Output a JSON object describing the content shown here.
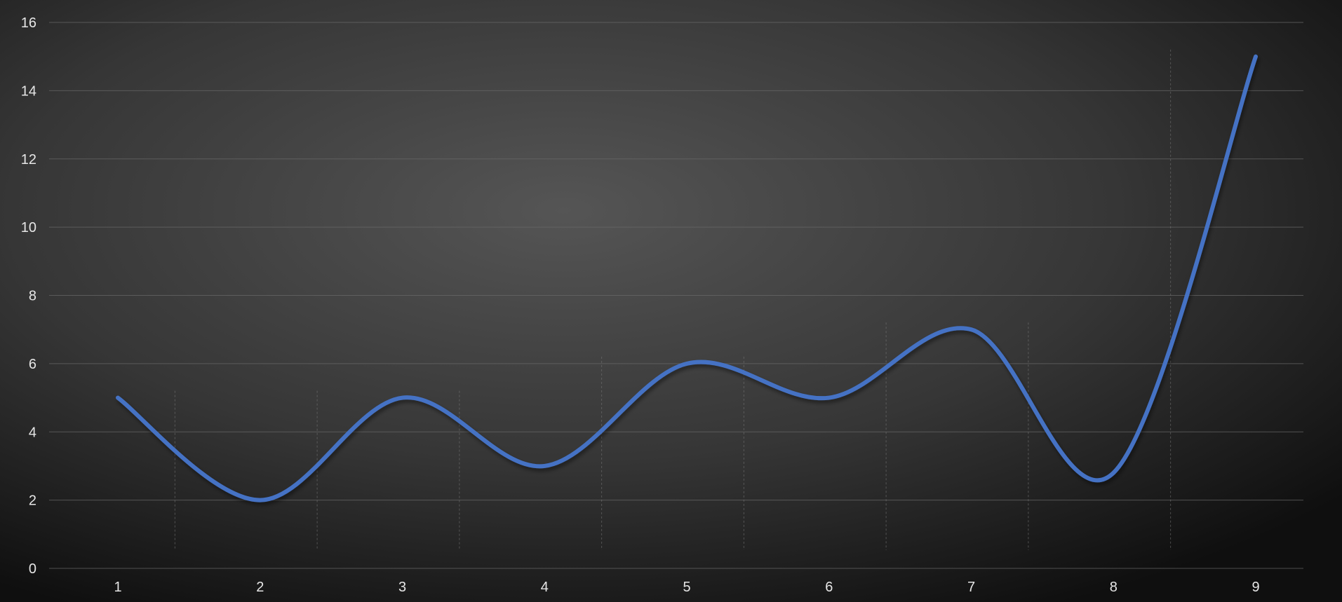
{
  "chart_data": {
    "type": "line",
    "title": "",
    "xlabel": "",
    "ylabel": "",
    "categories": [
      "1",
      "2",
      "3",
      "4",
      "5",
      "6",
      "7",
      "8",
      "9"
    ],
    "series": [
      {
        "values": [
          5,
          2,
          5,
          3,
          6,
          5,
          7,
          2.8,
          15
        ]
      }
    ],
    "ylim": [
      0,
      16
    ],
    "y_ticks": [
      "0",
      "2",
      "4",
      "6",
      "8",
      "10",
      "12",
      "14",
      "16"
    ],
    "smooth": true,
    "grid": "horizontal",
    "legend": "none"
  },
  "colors": {
    "series": "#4472c4",
    "background_center": "#555555",
    "background_edge": "#0f0f0f",
    "grid": "#6a6a6a",
    "tick_text": "#e6e6e6"
  }
}
